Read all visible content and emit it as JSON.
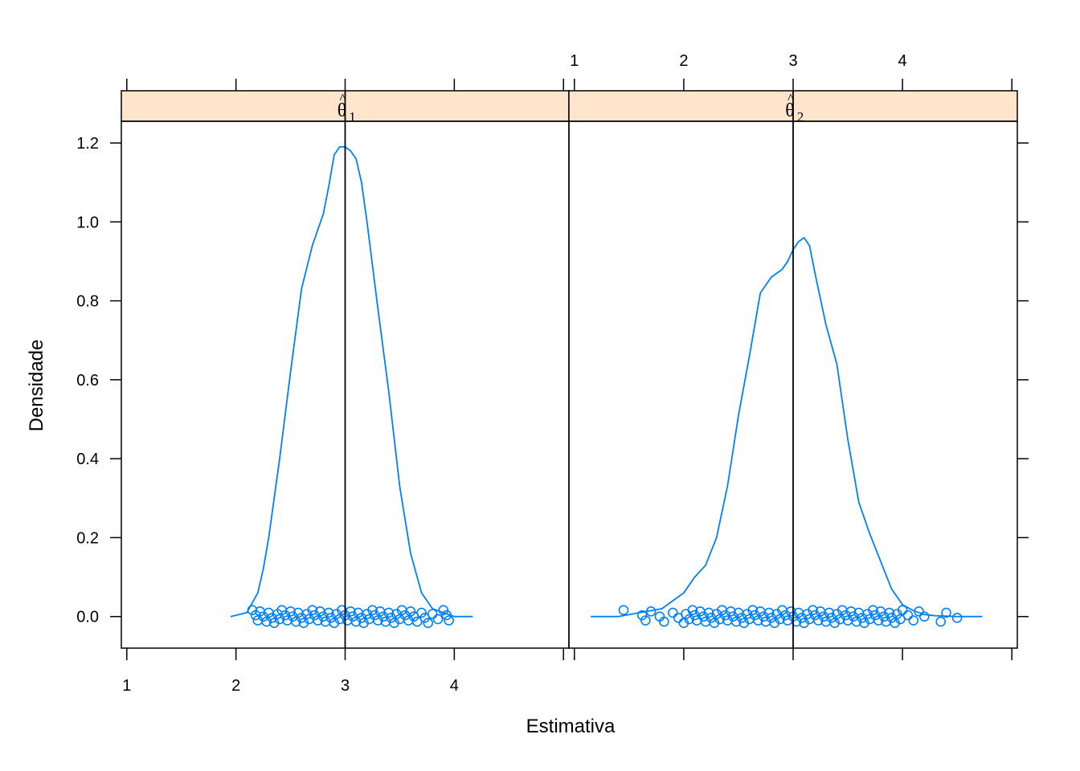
{
  "chart_data": {
    "type": "density-lattice",
    "xlabel": "Estimativa",
    "ylabel": "Densidade",
    "xlim": [
      0.95,
      5.05
    ],
    "ylim": [
      -0.08,
      1.255
    ],
    "x_ticks": [
      1,
      2,
      3,
      4
    ],
    "x_tick_labels": [
      "1",
      "2",
      "3",
      "4"
    ],
    "y_ticks": [
      0,
      0.2,
      0.4,
      0.6,
      0.8,
      1.0,
      1.2
    ],
    "y_tick_labels": [
      "0.0",
      "0.2",
      "0.4",
      "0.6",
      "0.8",
      "1.0",
      "1.2"
    ],
    "colors": {
      "curve": "#0080ff",
      "reference": "#000000",
      "strip": "#ffe5cc",
      "frame": "#000000"
    },
    "panels": [
      {
        "strip": {
          "symbol": "θ",
          "hat": "^",
          "subscript": "1"
        },
        "reference_x": 3.0,
        "density": {
          "x": [
            1.95,
            2.1,
            2.2,
            2.25,
            2.3,
            2.4,
            2.5,
            2.6,
            2.7,
            2.75,
            2.8,
            2.85,
            2.9,
            2.95,
            3.0,
            3.05,
            3.1,
            3.15,
            3.2,
            3.3,
            3.4,
            3.5,
            3.6,
            3.7,
            3.8,
            3.9,
            4.0,
            4.1,
            4.17
          ],
          "y": [
            0.0,
            0.01,
            0.06,
            0.12,
            0.2,
            0.4,
            0.62,
            0.83,
            0.94,
            0.98,
            1.02,
            1.09,
            1.17,
            1.19,
            1.19,
            1.18,
            1.16,
            1.1,
            1.0,
            0.78,
            0.57,
            0.33,
            0.16,
            0.06,
            0.02,
            0.01,
            0.0,
            0.0,
            0.0
          ]
        },
        "points": [
          2.15,
          2.18,
          2.2,
          2.22,
          2.25,
          2.28,
          2.3,
          2.33,
          2.35,
          2.38,
          2.4,
          2.42,
          2.45,
          2.47,
          2.5,
          2.52,
          2.55,
          2.57,
          2.6,
          2.62,
          2.65,
          2.67,
          2.7,
          2.72,
          2.75,
          2.77,
          2.8,
          2.82,
          2.85,
          2.87,
          2.9,
          2.92,
          2.95,
          2.97,
          3.0,
          3.02,
          3.05,
          3.07,
          3.1,
          3.12,
          3.15,
          3.17,
          3.2,
          3.22,
          3.25,
          3.27,
          3.3,
          3.32,
          3.35,
          3.37,
          3.4,
          3.42,
          3.45,
          3.47,
          3.5,
          3.52,
          3.55,
          3.58,
          3.6,
          3.63,
          3.66,
          3.7,
          3.73,
          3.76,
          3.8,
          3.85,
          3.9,
          3.93,
          3.95
        ]
      },
      {
        "strip": {
          "symbol": "θ",
          "hat": "^",
          "subscript": "2"
        },
        "reference_x": 3.0,
        "density": {
          "x": [
            1.15,
            1.4,
            1.6,
            1.8,
            2.0,
            2.1,
            2.2,
            2.3,
            2.4,
            2.5,
            2.6,
            2.7,
            2.8,
            2.9,
            2.95,
            3.0,
            3.05,
            3.1,
            3.15,
            3.2,
            3.3,
            3.4,
            3.5,
            3.6,
            3.7,
            3.8,
            3.9,
            4.0,
            4.1,
            4.2,
            4.3,
            4.4,
            4.5,
            4.6,
            4.7,
            4.73
          ],
          "y": [
            0.0,
            0.0,
            0.01,
            0.02,
            0.06,
            0.1,
            0.13,
            0.2,
            0.33,
            0.51,
            0.66,
            0.82,
            0.86,
            0.88,
            0.9,
            0.93,
            0.95,
            0.96,
            0.94,
            0.87,
            0.74,
            0.64,
            0.45,
            0.29,
            0.21,
            0.14,
            0.07,
            0.03,
            0.015,
            0.005,
            0.002,
            0.001,
            0.0,
            0.0,
            0.0,
            0.0
          ]
        },
        "points": [
          1.45,
          1.62,
          1.65,
          1.7,
          1.78,
          1.82,
          1.9,
          1.95,
          2.0,
          2.02,
          2.05,
          2.08,
          2.1,
          2.12,
          2.15,
          2.18,
          2.2,
          2.23,
          2.25,
          2.28,
          2.3,
          2.33,
          2.35,
          2.38,
          2.4,
          2.43,
          2.45,
          2.48,
          2.5,
          2.53,
          2.55,
          2.58,
          2.6,
          2.63,
          2.65,
          2.68,
          2.7,
          2.73,
          2.75,
          2.78,
          2.8,
          2.83,
          2.85,
          2.88,
          2.9,
          2.93,
          2.95,
          2.98,
          3.0,
          3.03,
          3.05,
          3.08,
          3.1,
          3.13,
          3.15,
          3.18,
          3.2,
          3.23,
          3.25,
          3.28,
          3.3,
          3.33,
          3.35,
          3.38,
          3.4,
          3.43,
          3.45,
          3.48,
          3.5,
          3.53,
          3.55,
          3.58,
          3.6,
          3.63,
          3.65,
          3.68,
          3.7,
          3.73,
          3.75,
          3.78,
          3.8,
          3.83,
          3.85,
          3.88,
          3.9,
          3.93,
          3.95,
          3.98,
          4.0,
          4.05,
          4.1,
          4.15,
          4.2,
          4.35,
          4.4,
          4.5
        ]
      }
    ]
  }
}
